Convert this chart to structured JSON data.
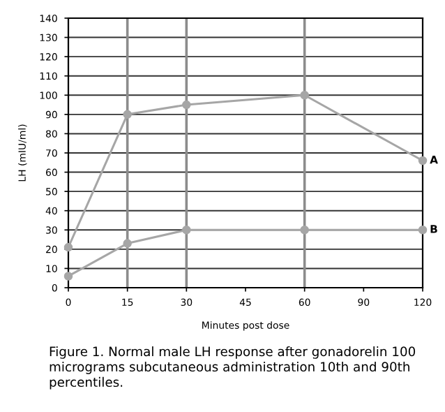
{
  "chart_data": {
    "type": "line",
    "categories": [
      "0",
      "15",
      "30",
      "45",
      "60",
      "90",
      "120"
    ],
    "series": [
      {
        "name": "A",
        "color": "#a6a6a6",
        "values": [
          21,
          90,
          95,
          null,
          100,
          null,
          66
        ]
      },
      {
        "name": "B",
        "color": "#a6a6a6",
        "values": [
          6,
          23,
          30,
          null,
          30,
          null,
          30
        ]
      }
    ],
    "ylabel": "LH (mIU/ml)",
    "xlabel": "Minutes post dose",
    "ylim": [
      0,
      140
    ],
    "yticks": [
      0,
      10,
      20,
      30,
      40,
      50,
      60,
      70,
      80,
      90,
      100,
      110,
      120,
      130,
      140
    ],
    "grid": "y",
    "marker": "circle",
    "line_style": "solid",
    "ref_lines": [
      {
        "axis": "x",
        "value": "15",
        "color": "#8c8c8c"
      },
      {
        "axis": "x",
        "value": "30",
        "color": "#8c8c8c"
      },
      {
        "axis": "x",
        "value": "60",
        "color": "#8c8c8c"
      }
    ],
    "annotations": [
      "Figure 1. Normal male LH response after gonadorelin 100 micrograms subcutaneous administration 10th and 90th percentiles."
    ]
  }
}
